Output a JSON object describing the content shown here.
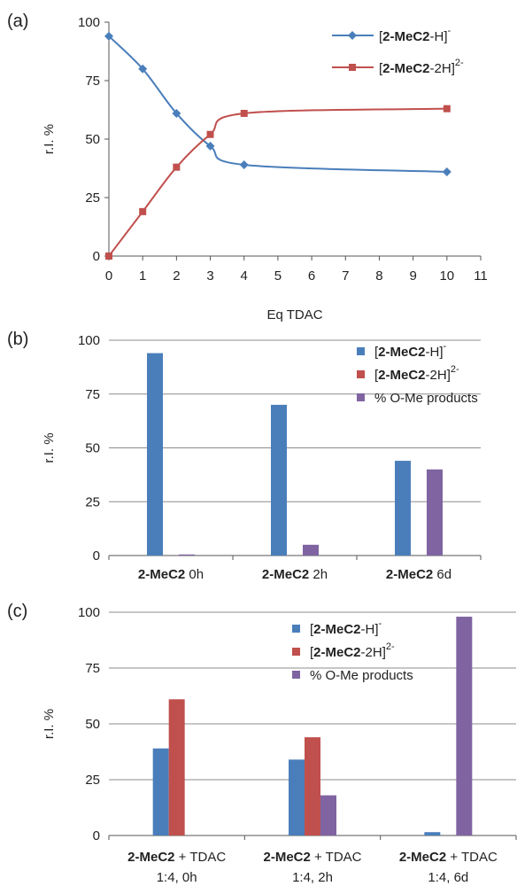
{
  "colors": {
    "blue": "#4a7ebb",
    "red": "#c0504d",
    "purple": "#8064a2"
  },
  "chart_data": [
    {
      "panel": "(a)",
      "type": "line",
      "xlabel": "Eq TDAC",
      "ylabel": "r.I. %",
      "xlim": [
        0,
        11
      ],
      "ylim": [
        0,
        100
      ],
      "xticks": [
        "0",
        "1",
        "2",
        "3",
        "4",
        "5",
        "6",
        "7",
        "8",
        "9",
        "10",
        "11"
      ],
      "yticks": [
        "0",
        "25",
        "50",
        "75",
        "100"
      ],
      "grid": false,
      "legend_position": "top-right",
      "series": [
        {
          "key": "h1",
          "marker": "diamond",
          "name_parts": [
            "[",
            "2-MeC2",
            "-H]",
            "-"
          ],
          "x": [
            0,
            1,
            2,
            3,
            4,
            10
          ],
          "y": [
            94,
            80,
            61,
            47,
            39,
            36
          ]
        },
        {
          "key": "h2",
          "marker": "square",
          "name_parts": [
            "[",
            "2-MeC2",
            "-2H]",
            "2-"
          ],
          "x": [
            0,
            1,
            2,
            3,
            4,
            10
          ],
          "y": [
            0,
            19,
            38,
            52,
            61,
            63
          ]
        }
      ]
    },
    {
      "panel": "(b)",
      "type": "bar",
      "ylabel": "r.I. %",
      "ylim": [
        0,
        100
      ],
      "yticks": [
        "0",
        "25",
        "50",
        "75",
        "100"
      ],
      "grid": true,
      "legend_position": "top-right",
      "categories": [
        {
          "bold": "2-MeC2",
          "rest": " 0h"
        },
        {
          "bold": "2-MeC2",
          "rest": " 2h"
        },
        {
          "bold": "2-MeC2",
          "rest": " 6d"
        }
      ],
      "series": [
        {
          "key": "h1",
          "name_parts": [
            "[",
            "2-MeC2",
            "-H]",
            "-"
          ],
          "values": [
            94,
            70,
            44
          ]
        },
        {
          "key": "h2",
          "name_parts": [
            "[",
            "2-MeC2",
            "-2H]",
            "2-"
          ],
          "values": [
            0,
            0,
            0
          ]
        },
        {
          "key": "ome",
          "name_parts": [
            "% O-Me products",
            "",
            "",
            ""
          ],
          "values": [
            0.5,
            5,
            40
          ]
        }
      ]
    },
    {
      "panel": "(c)",
      "type": "bar",
      "ylabel": "r.I. %",
      "ylim": [
        0,
        100
      ],
      "yticks": [
        "0",
        "25",
        "50",
        "75",
        "100"
      ],
      "grid": true,
      "legend_position": "top-center",
      "categories": [
        {
          "bold": "2-MeC2",
          "rest": " + TDAC",
          "line2": "1:4, 0h"
        },
        {
          "bold": "2-MeC2",
          "rest": " + TDAC",
          "line2": "1:4, 2h"
        },
        {
          "bold": "2-MeC2",
          "rest": " + TDAC",
          "line2": "1:4, 6d"
        }
      ],
      "series": [
        {
          "key": "h1",
          "name_parts": [
            "[",
            "2-MeC2",
            "-H]",
            "-"
          ],
          "values": [
            39,
            34,
            1.5
          ]
        },
        {
          "key": "h2",
          "name_parts": [
            "[",
            "2-MeC2",
            "-2H]",
            "2-"
          ],
          "values": [
            61,
            44,
            0
          ]
        },
        {
          "key": "ome",
          "name_parts": [
            "% O-Me products",
            "",
            "",
            ""
          ],
          "values": [
            0,
            18,
            98
          ]
        }
      ]
    }
  ]
}
